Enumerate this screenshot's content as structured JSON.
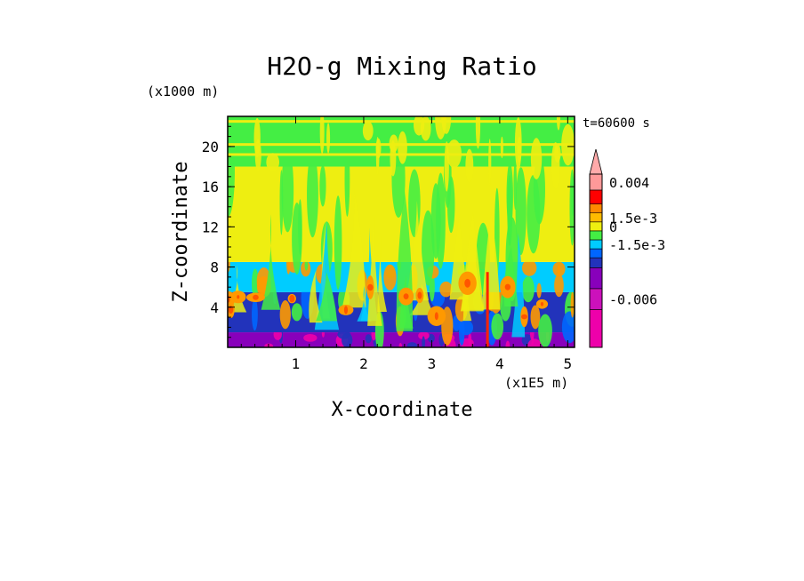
{
  "chart_data": {
    "type": "heatmap",
    "title": "H2O-g Mixing Ratio",
    "time_label": "t=60600 s",
    "xlabel": "X-coordinate",
    "ylabel": "Z-coordinate",
    "x_unit": "(x1E5 m)",
    "y_unit": "(x1000 m)",
    "xlim": [
      0.0,
      5.1
    ],
    "ylim": [
      0.0,
      23.0
    ],
    "x_ticks": [
      {
        "value": 1,
        "label": "1"
      },
      {
        "value": 2,
        "label": "2"
      },
      {
        "value": 3,
        "label": "3"
      },
      {
        "value": 4,
        "label": "4"
      },
      {
        "value": 5,
        "label": "5"
      }
    ],
    "y_ticks": [
      {
        "value": 4,
        "label": "4"
      },
      {
        "value": 8,
        "label": "8"
      },
      {
        "value": 12,
        "label": "12"
      },
      {
        "value": 16,
        "label": "16"
      },
      {
        "value": 20,
        "label": "20"
      }
    ],
    "colorbar": {
      "bins": [
        "#ee00aa",
        "#cc11bb",
        "#8800bb",
        "#2233bb",
        "#0066ff",
        "#00ccff",
        "#44ee44",
        "#eeee11",
        "#ffbb00",
        "#ff8800",
        "#ff0000",
        "#ff9999"
      ],
      "labels": [
        {
          "bin": 11,
          "text": "0.004"
        },
        {
          "bin": 8,
          "text": "1.5e-3"
        },
        {
          "bin": 7,
          "text": "0"
        },
        {
          "bin": 5,
          "text": "-1.5e-3"
        },
        {
          "bin": 1,
          "text": "-0.006"
        }
      ]
    },
    "field_bands": [
      {
        "z_range": [
          0.0,
          1.5
        ],
        "dominant": "#8800bb",
        "streaks": [
          "#2233bb",
          "#ee00aa"
        ]
      },
      {
        "z_range": [
          1.5,
          5.5
        ],
        "dominant": "#2233bb",
        "streaks": [
          "#0066ff",
          "#ff9900",
          "#44ee44"
        ]
      },
      {
        "z_range": [
          5.5,
          8.5
        ],
        "dominant": "#00ccff",
        "streaks": [
          "#44ee44",
          "#ff9900"
        ]
      },
      {
        "z_range": [
          8.5,
          18.0
        ],
        "dominant": "#eeee11",
        "streaks": [
          "#44ee44"
        ]
      },
      {
        "z_range": [
          18.0,
          23.0
        ],
        "dominant": "#44ee44",
        "streaks": [
          "#eeee11"
        ]
      }
    ]
  }
}
